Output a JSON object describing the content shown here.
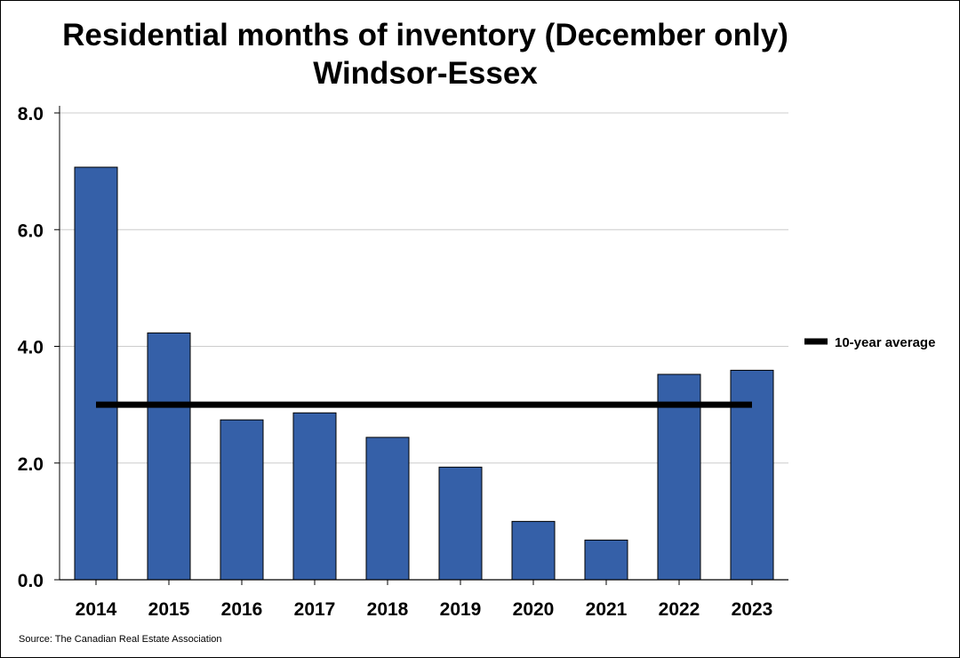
{
  "chart_data": {
    "type": "bar",
    "title": "Residential months of inventory (December only)",
    "subtitle": "Windsor-Essex",
    "categories": [
      "2014",
      "2015",
      "2016",
      "2017",
      "2018",
      "2019",
      "2020",
      "2021",
      "2022",
      "2023"
    ],
    "series": [
      {
        "values": [
          7.07,
          4.23,
          2.74,
          2.86,
          2.44,
          1.93,
          1.0,
          0.68,
          3.52,
          3.59
        ]
      }
    ],
    "reference_line": {
      "name": "10-year average",
      "value": 3.0
    },
    "ylim": [
      0,
      8
    ],
    "yticks": [
      "0.0",
      "2.0",
      "4.0",
      "6.0",
      "8.0"
    ],
    "xlabel": "",
    "ylabel": "",
    "grid": true,
    "legend": "right",
    "bar_color": "#3560a8",
    "bar_edge_color": "#000000",
    "line_color": "#000000",
    "grid_color": "#cccccc"
  },
  "source": "Source: The Canadian Real Estate Association"
}
